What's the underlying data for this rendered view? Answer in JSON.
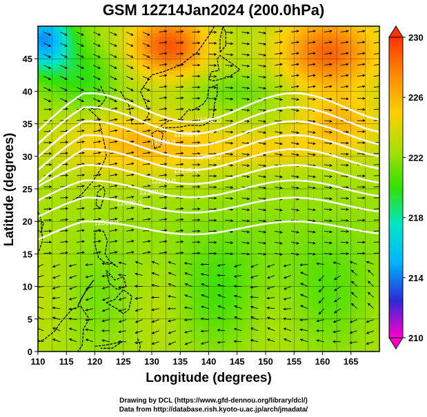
{
  "title": "GSM 12Z14Jan2024 (200.0hPa)",
  "xlabel": "Longitude (degrees)",
  "ylabel": "Latitude  (degrees)",
  "credits": [
    "Drawing by DCL (https://www.gfd-dennou.org/library/dcl/)",
    "Data from http://database.rish.kyoto-u.ac.jp/arch/jmadata/"
  ],
  "map": {
    "lon_range": [
      110,
      170
    ],
    "lat_range": [
      0,
      50
    ],
    "lon_ticks": [
      "110",
      "115",
      "120",
      "125",
      "130",
      "135",
      "140",
      "145",
      "150",
      "155",
      "160",
      "165"
    ],
    "lat_ticks": [
      "0",
      "5",
      "10",
      "15",
      "20",
      "25",
      "30",
      "35",
      "40",
      "45"
    ],
    "shaded_variable_range": [
      210,
      230
    ]
  },
  "colorbar": {
    "labels": [
      "230",
      "226",
      "222",
      "218",
      "214",
      "210"
    ],
    "stops": [
      "#ff00cc",
      "#2b2bd6",
      "#00b4ff",
      "#00e6c8",
      "#34e000",
      "#a8e000",
      "#ffd000",
      "#ff8a00",
      "#ff3300"
    ]
  },
  "contours": [
    {
      "label": "11700.0",
      "lat": 37.5
    },
    {
      "label": "11800.0",
      "lat": 35.5
    },
    {
      "label": "11900.0",
      "lat": 33.5
    },
    {
      "label": "12000.0",
      "lat": 31.5
    },
    {
      "label": "12100.0",
      "lat": 29.5
    },
    {
      "label": "12200.0",
      "lat": 27.2
    },
    {
      "label": "12300.0",
      "lat": 25.0
    },
    {
      "label": "12400.0",
      "lat": 22.5
    },
    {
      "label": "12500.0",
      "lat": 19.0
    }
  ]
}
